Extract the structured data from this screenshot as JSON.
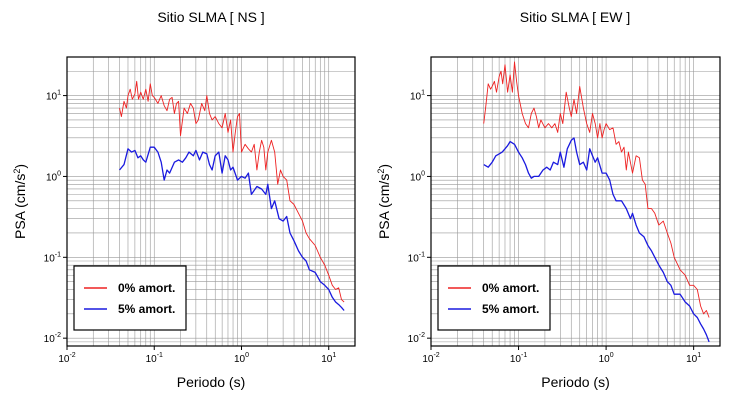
{
  "chart_data": [
    {
      "type": "line",
      "title": "Sitio SLMA [ NS ]",
      "xlabel": "Periodo (s)",
      "ylabel": "PSA (cm/s2)",
      "x_scale": "log",
      "y_scale": "log",
      "xlim": [
        0.01,
        20
      ],
      "ylim": [
        0.008,
        30
      ],
      "grid": true,
      "legend_position": "bottom-left",
      "x_ticks": [
        {
          "base": "10",
          "exp": "-2"
        },
        {
          "base": "10",
          "exp": "-1"
        },
        {
          "base": "10",
          "exp": "0"
        },
        {
          "base": "10",
          "exp": "1"
        }
      ],
      "y_ticks": [
        {
          "base": "10",
          "exp": "-2"
        },
        {
          "base": "10",
          "exp": "-1"
        },
        {
          "base": "10",
          "exp": "0"
        },
        {
          "base": "10",
          "exp": "1"
        }
      ],
      "series": [
        {
          "name": "0% amort.",
          "color": "#ee2222",
          "x": [
            0.04,
            0.042,
            0.045,
            0.048,
            0.05,
            0.053,
            0.056,
            0.06,
            0.063,
            0.066,
            0.07,
            0.075,
            0.08,
            0.085,
            0.09,
            0.095,
            0.1,
            0.11,
            0.12,
            0.13,
            0.14,
            0.15,
            0.16,
            0.17,
            0.18,
            0.19,
            0.2,
            0.22,
            0.24,
            0.26,
            0.28,
            0.3,
            0.32,
            0.35,
            0.38,
            0.4,
            0.43,
            0.46,
            0.5,
            0.55,
            0.6,
            0.65,
            0.7,
            0.75,
            0.8,
            0.85,
            0.9,
            0.95,
            1.0,
            1.1,
            1.2,
            1.3,
            1.4,
            1.5,
            1.6,
            1.7,
            1.8,
            1.9,
            2.0,
            2.2,
            2.4,
            2.6,
            2.8,
            3.0,
            3.3,
            3.6,
            4.0,
            4.5,
            5.0,
            5.5,
            6.0,
            7.0,
            8.0,
            9.0,
            10.0,
            11.0,
            12.0,
            13.0,
            14.0,
            15.0
          ],
          "y": [
            7.0,
            5.5,
            8.5,
            7.0,
            10.0,
            12.0,
            9.0,
            10.5,
            15.0,
            9.0,
            11.0,
            9.0,
            12.0,
            8.5,
            14.0,
            10.0,
            9.5,
            8.0,
            10.0,
            7.5,
            6.5,
            9.0,
            9.5,
            6.0,
            8.0,
            8.5,
            3.2,
            7.0,
            6.0,
            8.0,
            7.0,
            4.5,
            5.0,
            8.0,
            6.5,
            10.0,
            6.0,
            5.0,
            5.5,
            4.5,
            4.0,
            6.0,
            3.5,
            5.0,
            2.0,
            3.5,
            5.5,
            6.0,
            2.0,
            2.5,
            2.2,
            2.0,
            2.5,
            1.2,
            2.0,
            2.8,
            2.3,
            1.2,
            2.0,
            2.8,
            2.0,
            0.8,
            1.2,
            1.0,
            0.9,
            0.5,
            0.45,
            0.35,
            0.28,
            0.2,
            0.17,
            0.14,
            0.1,
            0.08,
            0.06,
            0.045,
            0.04,
            0.042,
            0.03,
            0.028
          ]
        },
        {
          "name": "5% amort.",
          "color": "#1a1adf",
          "x": [
            0.04,
            0.045,
            0.05,
            0.055,
            0.06,
            0.065,
            0.07,
            0.075,
            0.08,
            0.09,
            0.1,
            0.11,
            0.12,
            0.13,
            0.14,
            0.15,
            0.17,
            0.19,
            0.21,
            0.23,
            0.25,
            0.28,
            0.3,
            0.33,
            0.36,
            0.4,
            0.43,
            0.46,
            0.5,
            0.55,
            0.6,
            0.65,
            0.7,
            0.75,
            0.8,
            0.9,
            1.0,
            1.1,
            1.2,
            1.3,
            1.5,
            1.7,
            1.9,
            2.0,
            2.2,
            2.4,
            2.7,
            3.0,
            3.3,
            3.6,
            4.0,
            4.5,
            5.0,
            5.5,
            6.0,
            7.0,
            8.0,
            9.0,
            10.0,
            11.0,
            12.0,
            13.0,
            14.0,
            15.0
          ],
          "y": [
            1.2,
            1.4,
            2.2,
            2.0,
            2.1,
            1.7,
            1.8,
            1.6,
            1.5,
            2.3,
            2.3,
            2.0,
            1.5,
            0.9,
            1.2,
            1.1,
            1.5,
            1.6,
            1.5,
            1.7,
            2.0,
            1.8,
            2.1,
            1.6,
            2.0,
            1.9,
            1.4,
            1.2,
            1.8,
            2.0,
            1.1,
            1.8,
            1.6,
            1.2,
            1.3,
            0.9,
            1.0,
            0.95,
            1.1,
            0.6,
            0.75,
            0.7,
            0.6,
            0.8,
            0.4,
            0.5,
            0.3,
            0.28,
            0.32,
            0.2,
            0.16,
            0.12,
            0.1,
            0.09,
            0.07,
            0.065,
            0.05,
            0.045,
            0.04,
            0.032,
            0.028,
            0.026,
            0.024,
            0.022
          ]
        }
      ]
    },
    {
      "type": "line",
      "title": "Sitio SLMA [ EW ]",
      "xlabel": "Periodo (s)",
      "ylabel": "PSA (cm/s2)",
      "x_scale": "log",
      "y_scale": "log",
      "xlim": [
        0.01,
        20
      ],
      "ylim": [
        0.008,
        30
      ],
      "grid": true,
      "legend_position": "bottom-left",
      "x_ticks": [
        {
          "base": "10",
          "exp": "-2"
        },
        {
          "base": "10",
          "exp": "-1"
        },
        {
          "base": "10",
          "exp": "0"
        },
        {
          "base": "10",
          "exp": "1"
        }
      ],
      "y_ticks": [
        {
          "base": "10",
          "exp": "-2"
        },
        {
          "base": "10",
          "exp": "-1"
        },
        {
          "base": "10",
          "exp": "0"
        },
        {
          "base": "10",
          "exp": "1"
        }
      ],
      "series": [
        {
          "name": "0% amort.",
          "color": "#ee2222",
          "x": [
            0.04,
            0.042,
            0.045,
            0.048,
            0.05,
            0.053,
            0.056,
            0.06,
            0.063,
            0.066,
            0.07,
            0.075,
            0.08,
            0.085,
            0.09,
            0.095,
            0.1,
            0.11,
            0.12,
            0.13,
            0.14,
            0.15,
            0.16,
            0.17,
            0.18,
            0.2,
            0.22,
            0.24,
            0.26,
            0.28,
            0.3,
            0.32,
            0.35,
            0.38,
            0.4,
            0.43,
            0.46,
            0.5,
            0.55,
            0.6,
            0.65,
            0.7,
            0.75,
            0.8,
            0.85,
            0.9,
            0.95,
            1.0,
            1.1,
            1.2,
            1.3,
            1.4,
            1.5,
            1.6,
            1.7,
            1.8,
            2.0,
            2.2,
            2.4,
            2.6,
            2.8,
            3.0,
            3.3,
            3.6,
            4.0,
            4.5,
            5.0,
            5.5,
            6.0,
            7.0,
            8.0,
            9.0,
            10.0,
            11.0,
            12.0,
            13.0,
            14.0,
            15.0
          ],
          "y": [
            4.5,
            7.0,
            14.0,
            12.0,
            13.0,
            15.0,
            11.0,
            17.0,
            20.0,
            14.0,
            24.0,
            11.0,
            18.0,
            11.0,
            26.0,
            15.0,
            10.0,
            6.0,
            4.5,
            4.0,
            6.0,
            7.0,
            5.5,
            4.0,
            5.0,
            4.0,
            4.5,
            4.0,
            4.5,
            3.5,
            6.0,
            4.5,
            11.0,
            7.0,
            5.5,
            9.0,
            6.0,
            13.0,
            7.0,
            4.5,
            3.5,
            6.0,
            4.5,
            3.0,
            4.5,
            3.0,
            3.8,
            4.5,
            3.8,
            4.0,
            2.5,
            2.7,
            2.0,
            2.3,
            1.2,
            2.0,
            1.1,
            1.8,
            1.7,
            0.9,
            0.8,
            0.4,
            0.4,
            0.35,
            0.25,
            0.28,
            0.2,
            0.15,
            0.1,
            0.07,
            0.06,
            0.045,
            0.045,
            0.04,
            0.025,
            0.02,
            0.022,
            0.018
          ]
        },
        {
          "name": "5% amort.",
          "color": "#1a1adf",
          "x": [
            0.04,
            0.045,
            0.05,
            0.055,
            0.06,
            0.065,
            0.07,
            0.075,
            0.08,
            0.09,
            0.1,
            0.11,
            0.12,
            0.13,
            0.14,
            0.15,
            0.17,
            0.19,
            0.21,
            0.23,
            0.25,
            0.28,
            0.3,
            0.33,
            0.36,
            0.4,
            0.43,
            0.46,
            0.5,
            0.55,
            0.6,
            0.65,
            0.7,
            0.75,
            0.8,
            0.9,
            1.0,
            1.1,
            1.2,
            1.3,
            1.5,
            1.7,
            1.9,
            2.0,
            2.2,
            2.4,
            2.7,
            3.0,
            3.3,
            3.6,
            4.0,
            4.5,
            5.0,
            5.5,
            6.0,
            7.0,
            8.0,
            9.0,
            10.0,
            11.0,
            12.0,
            13.0,
            14.0,
            15.0
          ],
          "y": [
            1.4,
            1.3,
            1.5,
            1.8,
            1.9,
            2.0,
            2.2,
            2.4,
            2.7,
            2.5,
            2.0,
            1.7,
            1.4,
            1.1,
            0.95,
            1.0,
            1.0,
            1.2,
            1.3,
            1.2,
            1.5,
            1.4,
            2.0,
            1.3,
            2.2,
            2.8,
            3.0,
            2.0,
            1.4,
            1.5,
            1.2,
            2.2,
            1.8,
            1.5,
            1.7,
            1.1,
            1.1,
            0.9,
            0.6,
            0.5,
            0.5,
            0.4,
            0.3,
            0.35,
            0.25,
            0.2,
            0.18,
            0.14,
            0.12,
            0.1,
            0.08,
            0.065,
            0.05,
            0.045,
            0.035,
            0.035,
            0.028,
            0.025,
            0.02,
            0.018,
            0.015,
            0.013,
            0.011,
            0.009
          ]
        }
      ]
    }
  ]
}
